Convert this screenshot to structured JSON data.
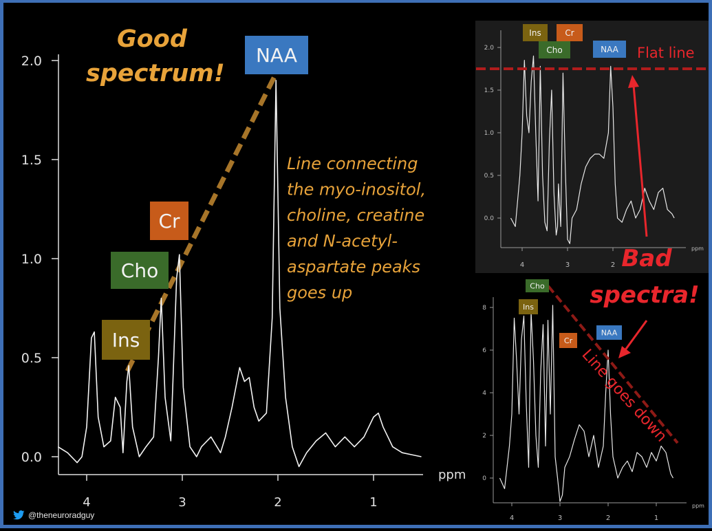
{
  "credit": {
    "handle": "@theneuroradguy",
    "icon": "twitter-bird-icon"
  },
  "colors": {
    "accent_gold": "#e8a33a",
    "ins": "#7b6310",
    "cho": "#3a6b2a",
    "cr": "#c75b1a",
    "naa": "#3a78c0",
    "flat_line": "#e8262c",
    "down_line": "#8e1a16",
    "border": "#3e6fb6"
  },
  "main": {
    "heading": [
      "Good",
      "spectrum!"
    ],
    "caption": [
      "Line connecting",
      "the myo-inositol,",
      "choline, creatine",
      "and N-acetyl-",
      "aspartate peaks",
      "goes up"
    ],
    "peak_labels": {
      "ins": "Ins",
      "cho": "Cho",
      "cr": "Cr",
      "naa": "NAA"
    }
  },
  "top_right": {
    "peak_labels": {
      "ins": "Ins",
      "cr": "Cr",
      "cho": "Cho",
      "naa": "NAA"
    },
    "annotation": "Flat line"
  },
  "bottom_right": {
    "peak_labels": {
      "cho": "Cho",
      "ins": "Ins",
      "cr": "Cr",
      "naa": "NAA"
    },
    "annotation": "Line goes down"
  },
  "bad_label": [
    "Bad",
    "spectra!"
  ],
  "chart_data": [
    {
      "type": "line",
      "title": "",
      "xlabel": "ppm",
      "ylabel": "",
      "x_reversed": true,
      "xlim": [
        4.3,
        0.5
      ],
      "ylim": [
        -0.08,
        2.0
      ],
      "xticks": [
        "4",
        "3",
        "2",
        "1"
      ],
      "yticks": [
        "0.0",
        "0.5",
        "1.0",
        "1.5",
        "2.0"
      ],
      "peaks": [
        {
          "name": "Ins",
          "ppm": 3.56,
          "value": 0.46
        },
        {
          "name": "Cho",
          "ppm": 3.22,
          "value": 0.8
        },
        {
          "name": "Cr",
          "ppm": 3.03,
          "value": 1.02
        },
        {
          "name": "NAA",
          "ppm": 2.02,
          "value": 1.9
        }
      ],
      "series": [
        {
          "x": [
            4.3,
            4.2,
            4.1,
            4.05,
            4.0,
            3.95,
            3.92,
            3.88,
            3.82,
            3.75,
            3.7,
            3.65,
            3.62,
            3.58,
            3.56,
            3.52,
            3.45,
            3.38,
            3.3,
            3.25,
            3.22,
            3.18,
            3.12,
            3.06,
            3.03,
            2.99,
            2.92,
            2.85,
            2.8,
            2.7,
            2.6,
            2.55,
            2.48,
            2.4,
            2.35,
            2.3,
            2.25,
            2.2,
            2.12,
            2.06,
            2.02,
            1.98,
            1.92,
            1.85,
            1.78,
            1.7,
            1.6,
            1.5,
            1.4,
            1.3,
            1.2,
            1.1,
            1.0,
            0.95,
            0.9,
            0.85,
            0.8,
            0.7,
            0.6,
            0.5
          ],
          "values": [
            0.05,
            0.02,
            -0.03,
            0.0,
            0.15,
            0.6,
            0.63,
            0.2,
            0.05,
            0.08,
            0.3,
            0.25,
            0.02,
            0.38,
            0.46,
            0.15,
            0.0,
            0.05,
            0.1,
            0.5,
            0.8,
            0.3,
            0.08,
            0.9,
            1.02,
            0.35,
            0.05,
            0.0,
            0.05,
            0.1,
            0.02,
            0.1,
            0.25,
            0.45,
            0.38,
            0.4,
            0.25,
            0.18,
            0.22,
            0.7,
            1.9,
            0.75,
            0.3,
            0.05,
            -0.05,
            0.02,
            0.08,
            0.12,
            0.05,
            0.1,
            0.05,
            0.1,
            0.2,
            0.22,
            0.15,
            0.1,
            0.05,
            0.02,
            0.01,
            0.0
          ]
        }
      ]
    },
    {
      "type": "line",
      "title": "",
      "xlabel": "ppm",
      "x_reversed": true,
      "xlim": [
        4.3,
        0.6
      ],
      "ylim": [
        -0.3,
        2.1
      ],
      "xticks": [
        "4",
        "3",
        "2"
      ],
      "yticks": [
        "0.0",
        "0.5",
        "1.0",
        "1.5",
        "2.0"
      ],
      "flat_line_value": 1.75,
      "series": [
        {
          "x": [
            4.25,
            4.15,
            4.05,
            4.0,
            3.95,
            3.9,
            3.85,
            3.8,
            3.75,
            3.7,
            3.65,
            3.6,
            3.55,
            3.5,
            3.45,
            3.4,
            3.35,
            3.3,
            3.25,
            3.22,
            3.2,
            3.15,
            3.1,
            3.05,
            3.0,
            2.95,
            2.9,
            2.8,
            2.7,
            2.6,
            2.5,
            2.4,
            2.3,
            2.2,
            2.1,
            2.05,
            2.0,
            1.95,
            1.9,
            1.8,
            1.7,
            1.6,
            1.5,
            1.4,
            1.3,
            1.2,
            1.1,
            1.0,
            0.9,
            0.8,
            0.7,
            0.65
          ],
          "values": [
            0.0,
            -0.1,
            0.5,
            1.0,
            1.85,
            1.2,
            1.0,
            1.6,
            1.9,
            1.0,
            0.2,
            1.78,
            0.5,
            -0.05,
            -0.15,
            0.9,
            1.5,
            0.3,
            -0.2,
            -0.1,
            0.4,
            -0.1,
            1.7,
            0.6,
            -0.25,
            -0.3,
            0.0,
            0.1,
            0.4,
            0.6,
            0.7,
            0.75,
            0.75,
            0.7,
            1.0,
            1.78,
            1.3,
            0.4,
            0.0,
            -0.05,
            0.1,
            0.2,
            0.0,
            0.1,
            0.35,
            0.2,
            0.1,
            0.3,
            0.35,
            0.1,
            0.05,
            0.0
          ]
        }
      ]
    },
    {
      "type": "line",
      "title": "",
      "xlabel": "ppm",
      "x_reversed": true,
      "xlim": [
        4.3,
        0.6
      ],
      "ylim": [
        -1.2,
        8.5
      ],
      "xticks": [
        "4",
        "3",
        "2",
        "1"
      ],
      "yticks": [
        "0",
        "2",
        "4",
        "6",
        "8"
      ],
      "trend_line": {
        "from": [
          3.25,
          9.0
        ],
        "to": [
          0.8,
          1.5
        ]
      },
      "series": [
        {
          "x": [
            4.25,
            4.15,
            4.05,
            4.0,
            3.95,
            3.9,
            3.85,
            3.8,
            3.75,
            3.7,
            3.65,
            3.6,
            3.55,
            3.5,
            3.45,
            3.4,
            3.35,
            3.3,
            3.25,
            3.2,
            3.15,
            3.1,
            3.05,
            3.0,
            2.95,
            2.9,
            2.8,
            2.7,
            2.6,
            2.5,
            2.4,
            2.3,
            2.2,
            2.1,
            2.05,
            2.0,
            1.95,
            1.9,
            1.8,
            1.7,
            1.6,
            1.5,
            1.4,
            1.3,
            1.2,
            1.1,
            1.0,
            0.9,
            0.8,
            0.7,
            0.65
          ],
          "values": [
            0.0,
            -0.5,
            1.5,
            3.0,
            7.5,
            5.5,
            3.0,
            6.5,
            7.6,
            3.5,
            0.5,
            7.8,
            5.5,
            2.0,
            0.5,
            5.0,
            7.2,
            1.5,
            7.4,
            3.0,
            8.1,
            1.0,
            0.0,
            -1.1,
            -0.8,
            0.5,
            1.0,
            1.8,
            2.5,
            2.2,
            1.0,
            2.0,
            0.5,
            1.5,
            4.0,
            6.0,
            3.0,
            1.0,
            0.0,
            0.5,
            0.8,
            0.3,
            1.2,
            1.0,
            0.5,
            1.2,
            0.8,
            1.5,
            1.2,
            0.2,
            0.0
          ]
        }
      ]
    }
  ]
}
